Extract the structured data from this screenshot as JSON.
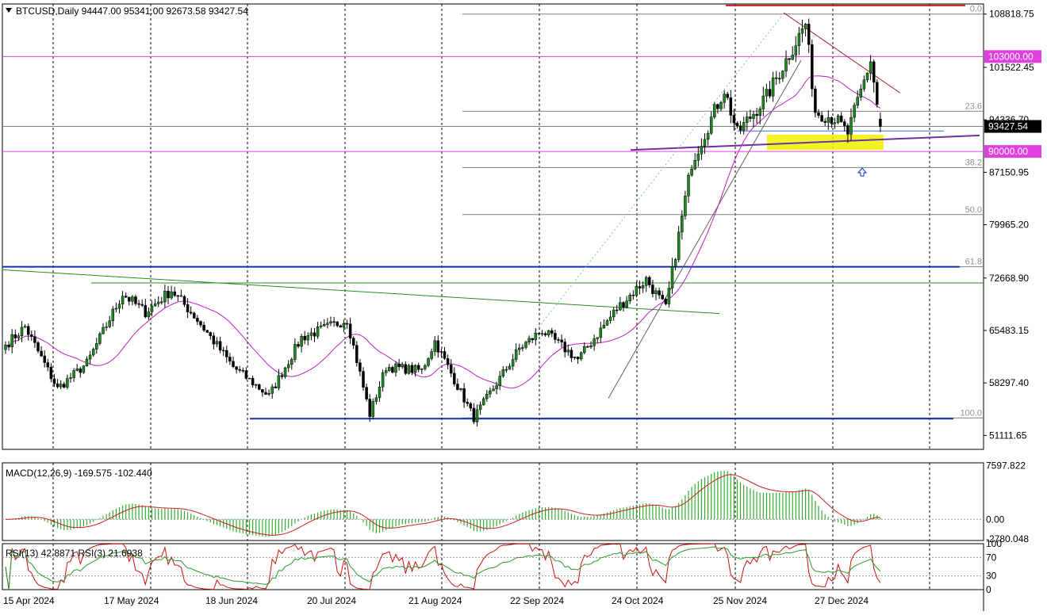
{
  "header": {
    "symbol_line": "BTCUSD,Daily  94447.00 95341.00 92673.58 93427.54"
  },
  "colors": {
    "bull": "#1f8a1f",
    "bear": "#000000",
    "ma": "#c020c0",
    "grid": "#000000",
    "fib": "#808080",
    "level_magenta": "#e040e0",
    "level_red": "#d02020",
    "support_blue": "#1030b0",
    "trend_green": "#2a8a2a",
    "macd_hist": "#33aa33",
    "macd_signal": "#cc2020",
    "rsi13": "#2a9a2a",
    "rsi3": "#cc1010",
    "zone_yellow": "#f0f000"
  },
  "chart_data": [
    {
      "type": "candlestick",
      "title": "BTCUSD,Daily",
      "ohlc_last": {
        "open": 94447.0,
        "high": 95341.0,
        "low": 92673.58,
        "close": 93427.54
      },
      "y_ticks": [
        "108818.75",
        "101522.45",
        "94336.70",
        "87150.95",
        "79965.20",
        "72668.90",
        "65483.15",
        "58297.40",
        "51111.65"
      ],
      "ylim": [
        49200,
        110200
      ],
      "x_labels": [
        "15 Apr 2024",
        "17 May 2024",
        "18 Jun 2024",
        "20 Jul 2024",
        "21 Aug 2024",
        "22 Sep 2024",
        "24 Oct 2024",
        "25 Nov 2024",
        "27 Dec 2024"
      ],
      "price_badges": [
        {
          "value": "103000.00",
          "level": 103000
        },
        {
          "value": "93427.54",
          "level": 93427.54
        },
        {
          "value": "90000.00",
          "level": 90000
        }
      ],
      "fib_labels": [
        {
          "label": "0.0",
          "level": 108818.75
        },
        {
          "label": "23.6",
          "level": 95500
        },
        {
          "label": "38.2",
          "level": 87800
        },
        {
          "label": "50.0",
          "level": 81350
        },
        {
          "label": "61.8",
          "level": 74200
        },
        {
          "label": "100.0",
          "level": 53500
        }
      ],
      "anchors": [
        {
          "date": "2024-04-15",
          "close": 63500
        },
        {
          "date": "2024-04-21",
          "close": 66000
        },
        {
          "date": "2024-05-01",
          "close": 57500
        },
        {
          "date": "2024-05-10",
          "close": 61000
        },
        {
          "date": "2024-05-21",
          "close": 70500
        },
        {
          "date": "2024-05-28",
          "close": 68000
        },
        {
          "date": "2024-06-05",
          "close": 71000
        },
        {
          "date": "2024-06-12",
          "close": 67500
        },
        {
          "date": "2024-06-24",
          "close": 60500
        },
        {
          "date": "2024-07-05",
          "close": 56500
        },
        {
          "date": "2024-07-15",
          "close": 64500
        },
        {
          "date": "2024-07-29",
          "close": 67000
        },
        {
          "date": "2024-08-05",
          "close": 54000
        },
        {
          "date": "2024-08-10",
          "close": 60500
        },
        {
          "date": "2024-08-21",
          "close": 60000
        },
        {
          "date": "2024-08-25",
          "close": 64000
        },
        {
          "date": "2024-09-06",
          "close": 53500
        },
        {
          "date": "2024-09-20",
          "close": 63000
        },
        {
          "date": "2024-09-27",
          "close": 65500
        },
        {
          "date": "2024-10-08",
          "close": 61500
        },
        {
          "date": "2024-10-20",
          "close": 68500
        },
        {
          "date": "2024-10-29",
          "close": 72500
        },
        {
          "date": "2024-11-04",
          "close": 68500
        },
        {
          "date": "2024-11-12",
          "close": 88500
        },
        {
          "date": "2024-11-22",
          "close": 98500
        },
        {
          "date": "2024-11-26",
          "close": 92500
        },
        {
          "date": "2024-12-05",
          "close": 97500
        },
        {
          "date": "2024-12-17",
          "close": 107500
        },
        {
          "date": "2024-12-20",
          "close": 95500
        },
        {
          "date": "2024-12-26",
          "close": 94500
        },
        {
          "date": "2024-12-30",
          "close": 92500
        },
        {
          "date": "2025-01-06",
          "close": 102500
        },
        {
          "date": "2025-01-09",
          "close": 93427.54
        }
      ]
    },
    {
      "type": "line",
      "title": "MACD(12,26,9) -169.575 -102.440",
      "y_ticks": [
        "7597.822",
        "0.00",
        "-2780.048"
      ],
      "ylim": [
        -3000,
        8000
      ],
      "series_names": [
        "MACD histogram",
        "Signal"
      ]
    },
    {
      "type": "line",
      "title": "RSI(13) 42.8871  RSI(3) 21.6938",
      "y_ticks": [
        "100",
        "70",
        "30",
        "0"
      ],
      "ylim": [
        0,
        100
      ],
      "levels": [
        70,
        30
      ]
    }
  ]
}
